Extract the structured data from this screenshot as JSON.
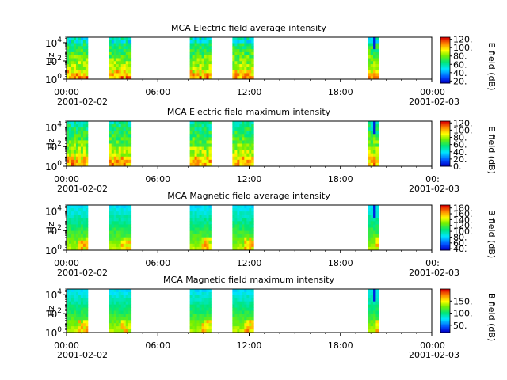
{
  "chart_data": [
    {
      "type": "heatmap",
      "title": "MCA  Electric field average intensity",
      "ylabel": "Hz",
      "yscale": "log",
      "y_ticks": [
        {
          "exp": "0",
          "value": 1
        },
        {
          "exp": "2",
          "value": 100
        },
        {
          "exp": "4",
          "value": 10000
        }
      ],
      "x_ticks": [
        "00:00",
        "06:00",
        "12:00",
        "18:00",
        "00:00"
      ],
      "x_hours": [
        0,
        6,
        12,
        18,
        24
      ],
      "date_labels": [
        "2001-02-02",
        "2001-02-03"
      ],
      "colorbar": {
        "label": "E field (dB)",
        "range": [
          15,
          125
        ],
        "ticks": [
          "20.",
          "40.",
          "60.",
          "80.",
          "100.",
          "120."
        ],
        "tick_values": [
          20,
          40,
          60,
          80,
          100,
          120
        ]
      },
      "data_blocks": [
        [
          0.0,
          1.4
        ],
        [
          2.8,
          4.2
        ],
        [
          8.1,
          9.5
        ],
        [
          10.9,
          12.3
        ],
        [
          19.8,
          20.5
        ]
      ]
    },
    {
      "type": "heatmap",
      "title": "MCA  Electric field maximum intensity",
      "ylabel": "Hz",
      "yscale": "log",
      "y_ticks": [
        {
          "exp": "0",
          "value": 1
        },
        {
          "exp": "2",
          "value": 100
        },
        {
          "exp": "4",
          "value": 10000
        }
      ],
      "x_ticks": [
        "00:00",
        "06:00",
        "12:00",
        "18:00",
        "00:"
      ],
      "x_hours": [
        0,
        6,
        12,
        18,
        24
      ],
      "date_labels": [
        "2001-02-02",
        "2001-02-03"
      ],
      "colorbar": {
        "label": "E field (dB)",
        "range": [
          0,
          125
        ],
        "ticks": [
          "0.",
          "20.",
          "40.",
          "60.",
          "80.",
          "100.",
          "120."
        ],
        "tick_values": [
          0,
          20,
          40,
          60,
          80,
          100,
          120
        ]
      },
      "data_blocks": [
        [
          0.0,
          1.4
        ],
        [
          2.8,
          4.2
        ],
        [
          8.1,
          9.5
        ],
        [
          10.9,
          12.3
        ],
        [
          19.8,
          20.5
        ]
      ]
    },
    {
      "type": "heatmap",
      "title": "MCA  Magnetic field average intensity",
      "ylabel": "Hz",
      "yscale": "log",
      "y_ticks": [
        {
          "exp": "0",
          "value": 1
        },
        {
          "exp": "2",
          "value": 100
        },
        {
          "exp": "4",
          "value": 10000
        }
      ],
      "x_ticks": [
        "00:00",
        "06:00",
        "12:00",
        "18:00",
        "00:"
      ],
      "x_hours": [
        0,
        6,
        12,
        18,
        24
      ],
      "date_labels": [
        "2001-02-02",
        "2001-02-03"
      ],
      "colorbar": {
        "label": "B field (dB)",
        "range": [
          35,
          190
        ],
        "ticks": [
          "40.",
          "60.",
          "80.",
          "100.",
          "120.",
          "140.",
          "160.",
          "180."
        ],
        "tick_values": [
          40,
          60,
          80,
          100,
          120,
          140,
          160,
          180
        ]
      },
      "data_blocks": [
        [
          0.0,
          1.4
        ],
        [
          2.8,
          4.2
        ],
        [
          8.1,
          9.5
        ],
        [
          10.9,
          12.3
        ],
        [
          19.8,
          20.5
        ]
      ]
    },
    {
      "type": "heatmap",
      "title": "MCA  Magnetic field maximum intensity",
      "ylabel": "Hz",
      "yscale": "log",
      "y_ticks": [
        {
          "exp": "0",
          "value": 1
        },
        {
          "exp": "2",
          "value": 100
        },
        {
          "exp": "4",
          "value": 10000
        }
      ],
      "x_ticks": [
        "00:00",
        "06:00",
        "12:00",
        "18:00",
        "00:00"
      ],
      "x_hours": [
        0,
        6,
        12,
        18,
        24
      ],
      "date_labels": [
        "2001-02-02",
        "2001-02-03"
      ],
      "colorbar": {
        "label": "B field (dB)",
        "range": [
          20,
          200
        ],
        "ticks": [
          "50.",
          "100.",
          "150."
        ],
        "tick_values": [
          50,
          100,
          150
        ]
      },
      "data_blocks": [
        [
          0.0,
          1.4
        ],
        [
          2.8,
          4.2
        ],
        [
          8.1,
          9.5
        ],
        [
          10.9,
          12.3
        ],
        [
          19.8,
          20.5
        ]
      ]
    }
  ]
}
